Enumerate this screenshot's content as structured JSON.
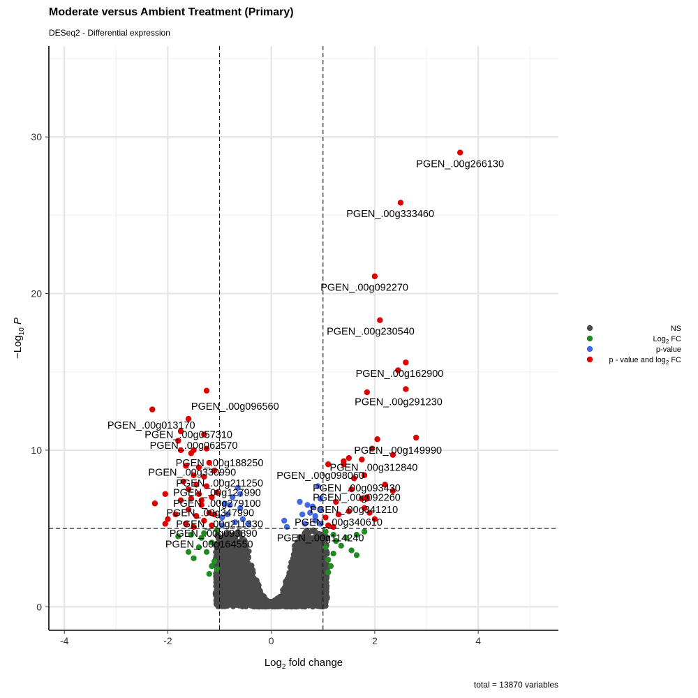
{
  "chart_data": {
    "type": "scatter",
    "title": "Moderate versus Ambient Treatment (Primary)",
    "subtitle": "DESeq2 - Differential expression",
    "caption": "total = 13870 variables",
    "xlabel": "Log2 fold change",
    "ylabel": "-Log10 P",
    "xlim": [
      -4.3,
      5.55
    ],
    "ylim": [
      -1.5,
      35.8
    ],
    "x_ticks": [
      -4,
      -2,
      0,
      2,
      4
    ],
    "y_ticks": [
      0,
      10,
      20,
      30
    ],
    "grid": true,
    "fc_cutoff": 1,
    "p_cutoff_y": 5,
    "colors": {
      "NS": "#4a4a4a",
      "Log2FC": "#228b22",
      "pvalue": "#4169e1",
      "both": "#e00000"
    },
    "legend": {
      "position": "right",
      "entries": [
        {
          "key": "NS",
          "label": "NS"
        },
        {
          "key": "Log2FC",
          "label": "Log2 FC"
        },
        {
          "key": "pvalue",
          "label": "p-value"
        },
        {
          "key": "both",
          "label": "p - value and log2 FC"
        }
      ]
    },
    "points_both": [
      [
        3.65,
        29.0
      ],
      [
        2.5,
        25.8
      ],
      [
        2.0,
        21.1
      ],
      [
        2.1,
        18.3
      ],
      [
        2.6,
        15.6
      ],
      [
        2.45,
        15.1
      ],
      [
        2.6,
        13.9
      ],
      [
        1.85,
        13.7
      ],
      [
        2.8,
        10.8
      ],
      [
        2.05,
        10.7
      ],
      [
        2.35,
        9.7
      ],
      [
        1.95,
        10.1
      ],
      [
        1.5,
        9.5
      ],
      [
        1.4,
        9.1
      ],
      [
        1.4,
        9.3
      ],
      [
        1.75,
        9.4
      ],
      [
        1.1,
        9.1
      ],
      [
        1.6,
        8.2
      ],
      [
        2.2,
        7.8
      ],
      [
        1.8,
        8.4
      ],
      [
        2.35,
        7.4
      ],
      [
        1.55,
        7.5
      ],
      [
        1.85,
        7.0
      ],
      [
        1.85,
        6.9
      ],
      [
        1.75,
        6.9
      ],
      [
        1.8,
        6.3
      ],
      [
        1.5,
        6.1
      ],
      [
        1.9,
        6.0
      ],
      [
        1.3,
        5.9
      ],
      [
        1.05,
        5.7
      ],
      [
        1.1,
        5.2
      ],
      [
        1.2,
        5.1
      ],
      [
        1.25,
        6.7
      ],
      [
        2.0,
        5.6
      ],
      [
        -1.25,
        13.8
      ],
      [
        -2.3,
        12.6
      ],
      [
        -1.6,
        12.0
      ],
      [
        -1.75,
        11.2
      ],
      [
        -1.3,
        11.0
      ],
      [
        -1.8,
        10.6
      ],
      [
        -1.5,
        10.0
      ],
      [
        -1.55,
        9.8
      ],
      [
        -1.75,
        10.0
      ],
      [
        -1.25,
        10.1
      ],
      [
        -1.2,
        9.2
      ],
      [
        -1.65,
        9.0
      ],
      [
        -1.4,
        8.9
      ],
      [
        -1.1,
        8.7
      ],
      [
        -1.5,
        8.4
      ],
      [
        -1.3,
        8.3
      ],
      [
        -1.7,
        8.0
      ],
      [
        -1.45,
        7.8
      ],
      [
        -1.25,
        7.7
      ],
      [
        -1.6,
        7.5
      ],
      [
        -2.05,
        7.2
      ],
      [
        -1.4,
        7.2
      ],
      [
        -1.15,
        7.0
      ],
      [
        -1.55,
        6.9
      ],
      [
        -1.75,
        6.8
      ],
      [
        -2.25,
        6.6
      ],
      [
        -1.35,
        6.5
      ],
      [
        -1.6,
        6.2
      ],
      [
        -1.2,
        6.0
      ],
      [
        -1.85,
        5.9
      ],
      [
        -1.45,
        5.8
      ],
      [
        -2.0,
        5.6
      ],
      [
        -1.3,
        5.5
      ],
      [
        -2.05,
        5.3
      ],
      [
        -1.65,
        5.3
      ],
      [
        -1.15,
        5.2
      ],
      [
        -1.5,
        5.1
      ],
      [
        -1.1,
        5.9
      ],
      [
        -1.35,
        6.8
      ],
      [
        -1.05,
        7.3
      ]
    ],
    "points_pvalue": [
      [
        0.55,
        6.7
      ],
      [
        0.7,
        6.5
      ],
      [
        0.75,
        6.0
      ],
      [
        0.85,
        5.8
      ],
      [
        0.95,
        6.2
      ],
      [
        0.85,
        5.5
      ],
      [
        0.95,
        5.3
      ],
      [
        0.65,
        5.3
      ],
      [
        0.6,
        5.9
      ],
      [
        0.95,
        6.9
      ],
      [
        0.9,
        7.7
      ],
      [
        0.8,
        6.4
      ],
      [
        0.3,
        5.1
      ],
      [
        0.25,
        5.5
      ],
      [
        -0.65,
        7.6
      ],
      [
        -0.75,
        7.0
      ],
      [
        -0.8,
        6.5
      ],
      [
        -0.6,
        6.3
      ],
      [
        -0.85,
        5.9
      ],
      [
        -0.55,
        5.6
      ],
      [
        -0.95,
        5.7
      ],
      [
        -0.7,
        5.4
      ],
      [
        -0.45,
        5.3
      ],
      [
        -0.9,
        6.6
      ],
      [
        -0.6,
        7.2
      ],
      [
        -0.95,
        5.2
      ]
    ],
    "points_fc": [
      [
        1.05,
        4.8
      ],
      [
        1.2,
        4.6
      ],
      [
        1.45,
        4.4
      ],
      [
        1.65,
        4.6
      ],
      [
        1.8,
        4.8
      ],
      [
        1.35,
        3.9
      ],
      [
        1.55,
        3.6
      ],
      [
        1.2,
        3.4
      ],
      [
        1.65,
        3.3
      ],
      [
        1.1,
        3.0
      ],
      [
        1.05,
        3.8
      ],
      [
        1.25,
        4.2
      ],
      [
        1.15,
        2.6
      ],
      [
        1.1,
        2.2
      ],
      [
        -1.05,
        4.9
      ],
      [
        -1.3,
        4.7
      ],
      [
        -1.55,
        4.6
      ],
      [
        -1.8,
        4.5
      ],
      [
        -1.15,
        4.1
      ],
      [
        -1.4,
        3.8
      ],
      [
        -1.6,
        3.5
      ],
      [
        -1.25,
        3.5
      ],
      [
        -1.1,
        2.9
      ],
      [
        -1.5,
        3.1
      ],
      [
        -1.15,
        2.6
      ],
      [
        -1.05,
        2.4
      ],
      [
        -1.2,
        2.1
      ],
      [
        -1.35,
        4.4
      ]
    ],
    "labels": [
      {
        "text": "PGEN_.00g266130",
        "x": 3.65,
        "y": 28.3,
        "anchor": "middle"
      },
      {
        "text": "PGEN_.00g333460",
        "x": 2.3,
        "y": 25.1,
        "anchor": "middle"
      },
      {
        "text": "PGEN_.00g092270",
        "x": 1.8,
        "y": 20.4,
        "anchor": "middle"
      },
      {
        "text": "PGEN_.00g230540",
        "x": 1.92,
        "y": 17.6,
        "anchor": "middle"
      },
      {
        "text": "PGEN_.00g162900",
        "x": 2.48,
        "y": 14.9,
        "anchor": "middle"
      },
      {
        "text": "PGEN_.00g291230",
        "x": 2.46,
        "y": 13.1,
        "anchor": "middle"
      },
      {
        "text": "PGEN_.00g096560",
        "x": -0.7,
        "y": 12.8,
        "anchor": "middle"
      },
      {
        "text": "PGEN_.00g013170",
        "x": -2.32,
        "y": 11.6,
        "anchor": "middle"
      },
      {
        "text": "PGEN_.00g057310",
        "x": -1.6,
        "y": 11.0,
        "anchor": "middle"
      },
      {
        "text": "PGEN_.00g062570",
        "x": -1.5,
        "y": 10.3,
        "anchor": "middle"
      },
      {
        "text": "PGEN_.00g149990",
        "x": 2.45,
        "y": 10.0,
        "anchor": "middle"
      },
      {
        "text": "PGEN_.00g188250",
        "x": -1.0,
        "y": 9.2,
        "anchor": "middle"
      },
      {
        "text": "PGEN_.00g312840",
        "x": 1.98,
        "y": 8.9,
        "anchor": "middle"
      },
      {
        "text": "PGEN_.00g330990",
        "x": -1.53,
        "y": 8.6,
        "anchor": "middle"
      },
      {
        "text": "PGEN_.00g098060",
        "x": 0.95,
        "y": 8.4,
        "anchor": "middle"
      },
      {
        "text": "PGEN_.00g211250",
        "x": -1.0,
        "y": 7.9,
        "anchor": "middle"
      },
      {
        "text": "PGEN_.00g093430",
        "x": 1.65,
        "y": 7.6,
        "anchor": "middle"
      },
      {
        "text": "PGEN_.00g127990",
        "x": -1.05,
        "y": 7.3,
        "anchor": "middle"
      },
      {
        "text": "PGEN_.00g092260",
        "x": 1.65,
        "y": 7.0,
        "anchor": "middle"
      },
      {
        "text": "PGEN_.00g279100",
        "x": -1.05,
        "y": 6.6,
        "anchor": "middle"
      },
      {
        "text": "PGEN_.00g341210",
        "x": 1.6,
        "y": 6.2,
        "anchor": "middle"
      },
      {
        "text": "PGEN_.00g347990",
        "x": -1.18,
        "y": 6.0,
        "anchor": "middle"
      },
      {
        "text": "PGEN_.00g211330",
        "x": -1.0,
        "y": 5.3,
        "anchor": "middle"
      },
      {
        "text": "PGEN_.00g340610",
        "x": 1.3,
        "y": 5.4,
        "anchor": "middle"
      },
      {
        "text": "PGEN_.00g093890",
        "x": -1.12,
        "y": 4.7,
        "anchor": "middle"
      },
      {
        "text": "PGEN_.00g114240",
        "x": 0.95,
        "y": 4.4,
        "anchor": "middle"
      },
      {
        "text": "PGEN_.00g164550",
        "x": -1.2,
        "y": 4.0,
        "anchor": "middle"
      }
    ]
  }
}
